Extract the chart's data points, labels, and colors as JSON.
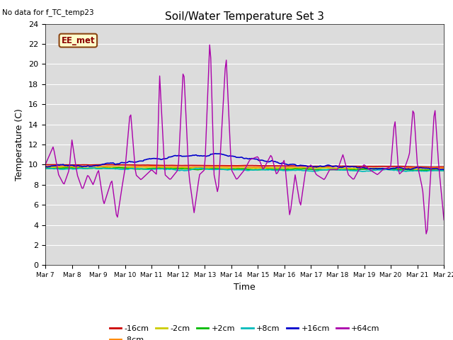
{
  "title": "Soil/Water Temperature Set 3",
  "xlabel": "Time",
  "ylabel": "Temperature (C)",
  "no_data_text": "No data for f_TC_temp23",
  "legend_label_text": "EE_met",
  "ylim": [
    0,
    24
  ],
  "xlim": [
    0,
    15
  ],
  "background_color": "#dcdcdc",
  "series": {
    "-16cm": {
      "color": "#cc0000",
      "lw": 1.2
    },
    "-8cm": {
      "color": "#ff8800",
      "lw": 1.2
    },
    "-2cm": {
      "color": "#cccc00",
      "lw": 1.2
    },
    "+2cm": {
      "color": "#00bb00",
      "lw": 1.2
    },
    "+8cm": {
      "color": "#00bbbb",
      "lw": 1.2
    },
    "+16cm": {
      "color": "#0000cc",
      "lw": 1.2
    },
    "+64cm": {
      "color": "#aa00aa",
      "lw": 1.0
    }
  },
  "xtick_labels": [
    "Mar 7",
    "Mar 8",
    "Mar 9",
    "Mar 10",
    "Mar 11",
    "Mar 12",
    "Mar 13",
    "Mar 14",
    "Mar 15",
    "Mar 16",
    "Mar 17",
    "Mar 18",
    "Mar 19",
    "Mar 20",
    "Mar 21",
    "Mar 22"
  ],
  "ytick_labels": [
    "0",
    "2",
    "4",
    "6",
    "8",
    "10",
    "12",
    "14",
    "16",
    "18",
    "20",
    "22",
    "24"
  ]
}
